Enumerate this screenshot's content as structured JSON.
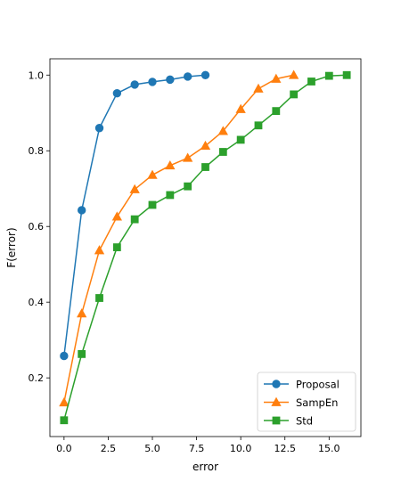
{
  "chart_data": {
    "type": "line",
    "title": "",
    "xlabel": "error",
    "ylabel": "F(error)",
    "xlim": [
      -0.8,
      16.8
    ],
    "ylim": [
      0.045,
      1.043
    ],
    "xticks": [
      0.0,
      2.5,
      5.0,
      7.5,
      10.0,
      12.5,
      15.0
    ],
    "xtick_labels": [
      "0.0",
      "2.5",
      "5.0",
      "7.5",
      "10.0",
      "12.5",
      "15.0"
    ],
    "yticks": [
      0.2,
      0.4,
      0.6,
      0.8,
      1.0
    ],
    "ytick_labels": [
      "0.2",
      "0.4",
      "0.6",
      "0.8",
      "1.0"
    ],
    "grid": false,
    "legend_position": "lower-right",
    "series": [
      {
        "name": "Proposal",
        "color": "#1f77b4",
        "marker": "circle",
        "x": [
          0,
          1,
          2,
          3,
          4,
          5,
          6,
          7,
          8
        ],
        "y": [
          0.258,
          0.643,
          0.86,
          0.952,
          0.975,
          0.982,
          0.988,
          0.996,
          1.0
        ]
      },
      {
        "name": "SampEn",
        "color": "#ff7f0e",
        "marker": "triangle",
        "x": [
          0,
          1,
          2,
          3,
          4,
          5,
          6,
          7,
          8,
          9,
          10,
          11,
          12,
          13
        ],
        "y": [
          0.135,
          0.37,
          0.537,
          0.626,
          0.698,
          0.736,
          0.761,
          0.781,
          0.813,
          0.852,
          0.91,
          0.964,
          0.99,
          1.0
        ]
      },
      {
        "name": "Std",
        "color": "#2ca02c",
        "marker": "square",
        "x": [
          0,
          1,
          2,
          3,
          4,
          5,
          6,
          7,
          8,
          9,
          10,
          11,
          12,
          13,
          14,
          15,
          16
        ],
        "y": [
          0.088,
          0.263,
          0.411,
          0.545,
          0.619,
          0.657,
          0.683,
          0.706,
          0.757,
          0.797,
          0.829,
          0.867,
          0.905,
          0.949,
          0.983,
          0.998,
          1.0
        ]
      }
    ]
  }
}
